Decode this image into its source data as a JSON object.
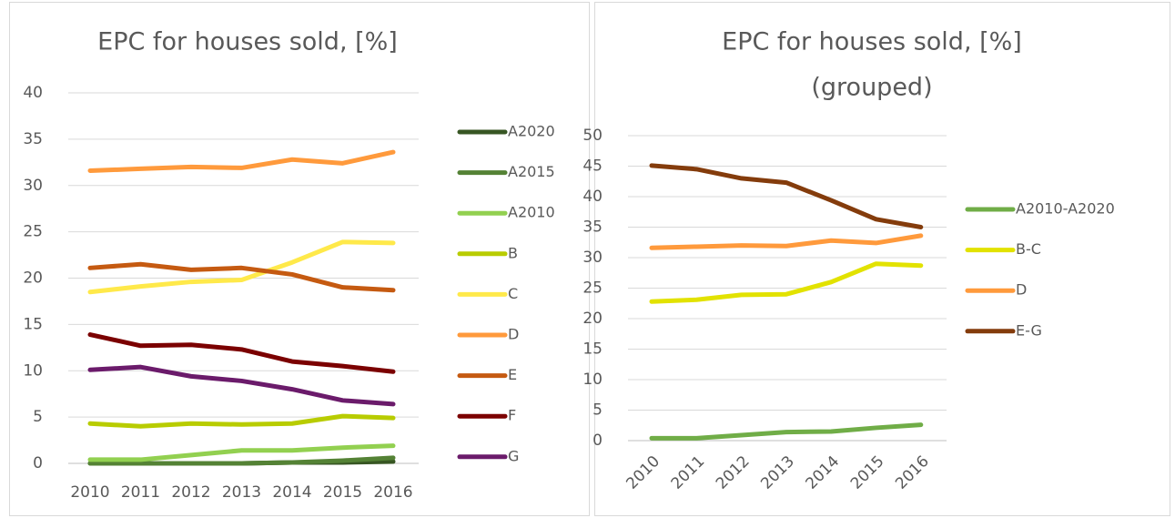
{
  "chart_data": [
    {
      "type": "line",
      "title": "EPC for houses sold, [%]",
      "categories": [
        "2010",
        "2011",
        "2012",
        "2013",
        "2014",
        "2015",
        "2016"
      ],
      "ylim": [
        0,
        40
      ],
      "yticks": [
        0,
        5,
        10,
        15,
        20,
        25,
        30,
        35,
        40
      ],
      "grid": true,
      "legend": "right",
      "series": [
        {
          "name": "A2020",
          "color": "#375623",
          "values": [
            0,
            0,
            0,
            0,
            0.1,
            0.1,
            0.2
          ]
        },
        {
          "name": "A2015",
          "color": "#548235",
          "values": [
            0,
            0,
            0,
            0,
            0.1,
            0.3,
            0.6
          ]
        },
        {
          "name": "A2010",
          "color": "#92d050",
          "values": [
            0.4,
            0.4,
            0.9,
            1.4,
            1.4,
            1.7,
            1.9
          ]
        },
        {
          "name": "B",
          "color": "#b8cc00",
          "values": [
            4.3,
            4.0,
            4.3,
            4.2,
            4.3,
            5.1,
            4.9
          ]
        },
        {
          "name": "C",
          "color": "#ffe94a",
          "values": [
            18.5,
            19.1,
            19.6,
            19.8,
            21.7,
            23.9,
            23.8
          ]
        },
        {
          "name": "D",
          "color": "#ff9a3c",
          "values": [
            31.6,
            31.8,
            32.0,
            31.9,
            32.8,
            32.4,
            33.6
          ]
        },
        {
          "name": "E",
          "color": "#c55a11",
          "values": [
            21.1,
            21.5,
            20.9,
            21.1,
            20.4,
            19.0,
            18.7
          ]
        },
        {
          "name": "F",
          "color": "#7b0000",
          "values": [
            13.9,
            12.7,
            12.8,
            12.3,
            11.0,
            10.5,
            9.9
          ]
        },
        {
          "name": "G",
          "color": "#6b1b6b",
          "values": [
            10.1,
            10.4,
            9.4,
            8.9,
            8.0,
            6.8,
            6.4
          ]
        }
      ]
    },
    {
      "type": "line",
      "title": "EPC for houses sold, [%]",
      "subtitle": "(grouped)",
      "categories": [
        "2010",
        "2011",
        "2012",
        "2013",
        "2014",
        "2015",
        "2016"
      ],
      "ylim": [
        0,
        50
      ],
      "yticks": [
        0,
        5,
        10,
        15,
        20,
        25,
        30,
        35,
        40,
        45,
        50
      ],
      "grid": true,
      "legend": "right",
      "series": [
        {
          "name": "A2010-A2020",
          "color": "#70ad47",
          "values": [
            0.4,
            0.4,
            0.9,
            1.4,
            1.5,
            2.1,
            2.6
          ]
        },
        {
          "name": "B-C",
          "color": "#e2e200",
          "values": [
            22.8,
            23.1,
            23.9,
            24.0,
            26.0,
            29.0,
            28.7
          ]
        },
        {
          "name": "D",
          "color": "#ff9a3c",
          "values": [
            31.6,
            31.8,
            32.0,
            31.9,
            32.8,
            32.4,
            33.6
          ]
        },
        {
          "name": "E-G",
          "color": "#843c0c",
          "values": [
            45.1,
            44.5,
            43.0,
            42.3,
            39.4,
            36.3,
            35.0
          ]
        }
      ]
    }
  ]
}
